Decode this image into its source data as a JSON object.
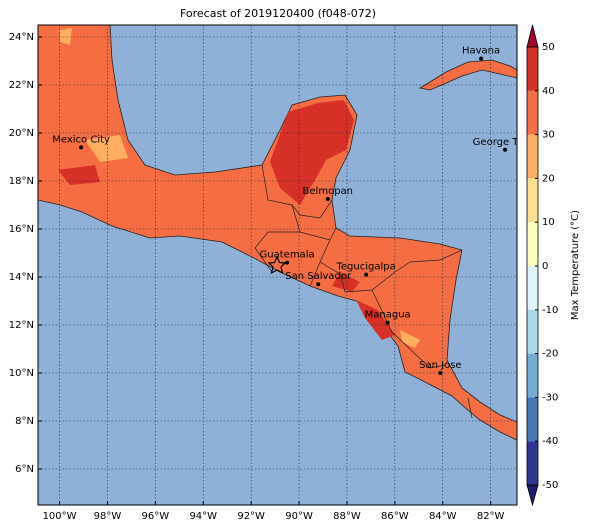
{
  "chart_data": {
    "type": "map",
    "title": "Forecast of 2019120400 (f048-072)",
    "xlim": [
      -100.9,
      -80.9
    ],
    "ylim": [
      4.5,
      24.5
    ],
    "xticks": [
      {
        "value": -100,
        "label": "100°W"
      },
      {
        "value": -98,
        "label": "98°W"
      },
      {
        "value": -96,
        "label": "96°W"
      },
      {
        "value": -94,
        "label": "94°W"
      },
      {
        "value": -92,
        "label": "92°W"
      },
      {
        "value": -90,
        "label": "90°W"
      },
      {
        "value": -88,
        "label": "88°W"
      },
      {
        "value": -86,
        "label": "86°W"
      },
      {
        "value": -84,
        "label": "84°W"
      },
      {
        "value": -82,
        "label": "82°W"
      }
    ],
    "yticks": [
      {
        "value": 6,
        "label": "6°N"
      },
      {
        "value": 8,
        "label": "8°N"
      },
      {
        "value": 10,
        "label": "10°N"
      },
      {
        "value": 12,
        "label": "12°N"
      },
      {
        "value": 14,
        "label": "14°N"
      },
      {
        "value": 16,
        "label": "16°N"
      },
      {
        "value": 18,
        "label": "18°N"
      },
      {
        "value": 20,
        "label": "20°N"
      },
      {
        "value": 22,
        "label": "22°N"
      },
      {
        "value": 24,
        "label": "24°N"
      }
    ],
    "grid": true,
    "cities": [
      {
        "name": "Havana",
        "lon": -82.4,
        "lat": 23.1
      },
      {
        "name": "Mexico City",
        "lon": -99.1,
        "lat": 19.4
      },
      {
        "name": "George Town",
        "lon": -81.4,
        "lat": 19.3
      },
      {
        "name": "Belmopan",
        "lon": -88.8,
        "lat": 17.25
      },
      {
        "name": "Guatemala",
        "lon": -90.5,
        "lat": 14.6
      },
      {
        "name": "San Salvador",
        "lon": -89.2,
        "lat": 13.7
      },
      {
        "name": "Tegucigalpa",
        "lon": -87.2,
        "lat": 14.1
      },
      {
        "name": "Managua",
        "lon": -86.3,
        "lat": 12.1
      },
      {
        "name": "San Jose",
        "lon": -84.1,
        "lat": 10.0
      }
    ],
    "colorbar": {
      "label": "Max Temperature (°C)",
      "ticks": [
        -50,
        -40,
        -30,
        -20,
        -10,
        0,
        10,
        20,
        30,
        40,
        50
      ],
      "colors": [
        "#313695",
        "#4575b4",
        "#74add1",
        "#abd9e9",
        "#e0f3f8",
        "#ffffbf",
        "#fee090",
        "#fdae61",
        "#f46d43",
        "#d73027"
      ],
      "under_color": "#1f1f6e",
      "over_color": "#a50026"
    }
  }
}
